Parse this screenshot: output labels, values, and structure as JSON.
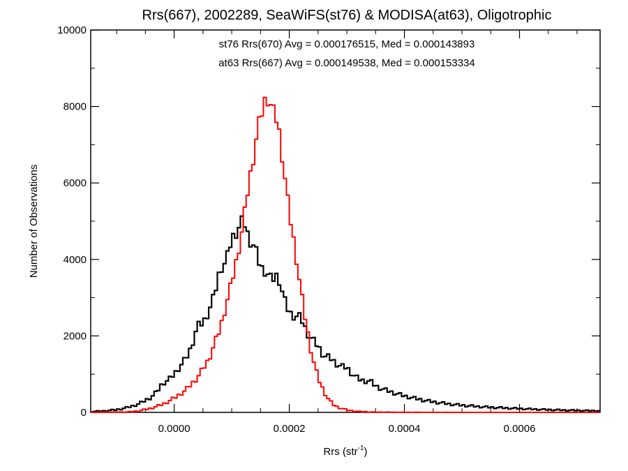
{
  "chart_data": {
    "type": "line",
    "title": "Rrs(667), 2002289, SeaWiFS(st76) & MODISA(at63), Oligotrophic",
    "xlabel": "Rrs (str",
    "xlabel_sup": "-1",
    "xlabel_close": ")",
    "ylabel": "Number of Observations",
    "xlim": [
      -0.000145,
      0.00074
    ],
    "ylim": [
      0,
      10000
    ],
    "x_ticks": [
      {
        "value": 0.0,
        "label": "0.0000"
      },
      {
        "value": 0.0002,
        "label": "0.0002"
      },
      {
        "value": 0.0004,
        "label": "0.0004"
      },
      {
        "value": 0.0006,
        "label": "0.0006"
      }
    ],
    "y_ticks": [
      {
        "value": 0,
        "label": "0"
      },
      {
        "value": 2000,
        "label": "2000"
      },
      {
        "value": 4000,
        "label": "4000"
      },
      {
        "value": 6000,
        "label": "6000"
      },
      {
        "value": 8000,
        "label": "8000"
      },
      {
        "value": 10000,
        "label": "10000"
      }
    ],
    "annotations": [
      {
        "text": "st76 Rrs(670) Avg = 0.000176515, Med = 0.000143893",
        "color": "#000000"
      },
      {
        "text": "at63 Rrs(667) Avg = 0.000149538, Med = 0.000153334",
        "color": "#ff0000"
      }
    ],
    "series": [
      {
        "color": "#000000",
        "points": [
          [
            -0.000145,
            20
          ],
          [
            -0.00012,
            40
          ],
          [
            -0.0001,
            70
          ],
          [
            -8e-05,
            130
          ],
          [
            -6e-05,
            230
          ],
          [
            -4e-05,
            400
          ],
          [
            -2e-05,
            650
          ],
          [
            0.0,
            1000
          ],
          [
            2e-05,
            1400
          ],
          [
            4e-05,
            1950
          ],
          [
            6e-05,
            2650
          ],
          [
            8e-05,
            3400
          ],
          [
            0.0001,
            4300
          ],
          [
            0.00011,
            4700
          ],
          [
            0.00012,
            4850
          ],
          [
            0.00013,
            4500
          ],
          [
            0.00014,
            4350
          ],
          [
            0.00015,
            4000
          ],
          [
            0.00016,
            3700
          ],
          [
            0.00017,
            3400
          ],
          [
            0.00018,
            3200
          ],
          [
            0.0002,
            2750
          ],
          [
            0.00022,
            2250
          ],
          [
            0.00024,
            1900
          ],
          [
            0.00026,
            1600
          ],
          [
            0.00028,
            1300
          ],
          [
            0.0003,
            1070
          ],
          [
            0.00032,
            880
          ],
          [
            0.00034,
            740
          ],
          [
            0.00036,
            620
          ],
          [
            0.00038,
            520
          ],
          [
            0.0004,
            430
          ],
          [
            0.00042,
            360
          ],
          [
            0.00044,
            300
          ],
          [
            0.00046,
            255
          ],
          [
            0.00048,
            215
          ],
          [
            0.0005,
            185
          ],
          [
            0.00054,
            140
          ],
          [
            0.00058,
            110
          ],
          [
            0.00062,
            85
          ],
          [
            0.00066,
            65
          ],
          [
            0.0007,
            50
          ],
          [
            0.00074,
            40
          ]
        ],
        "spikes": [
          [
            -2e-05,
            100
          ],
          [
            4e-05,
            260
          ],
          [
            8e-05,
            320
          ],
          [
            0.0001,
            220
          ],
          [
            0.00012,
            180
          ],
          [
            0.00015,
            -180
          ],
          [
            0.00018,
            350
          ],
          [
            0.0002,
            -120
          ],
          [
            0.00022,
            200
          ],
          [
            0.00026,
            -110
          ],
          [
            0.0003,
            90
          ],
          [
            0.00034,
            70
          ]
        ]
      },
      {
        "color": "#ff0000",
        "points": [
          [
            -0.000145,
            0
          ],
          [
            -8e-05,
            10
          ],
          [
            -6e-05,
            40
          ],
          [
            -4e-05,
            110
          ],
          [
            -2e-05,
            210
          ],
          [
            0.0,
            370
          ],
          [
            2e-05,
            580
          ],
          [
            4e-05,
            900
          ],
          [
            6e-05,
            1380
          ],
          [
            8e-05,
            2200
          ],
          [
            0.0001,
            3400
          ],
          [
            0.00011,
            4100
          ],
          [
            0.00012,
            4900
          ],
          [
            0.00013,
            5800
          ],
          [
            0.00014,
            6700
          ],
          [
            0.00015,
            7500
          ],
          [
            0.000155,
            7900
          ],
          [
            0.00016,
            8150
          ],
          [
            0.000165,
            8100
          ],
          [
            0.00017,
            7850
          ],
          [
            0.00018,
            7200
          ],
          [
            0.00019,
            6400
          ],
          [
            0.0002,
            5400
          ],
          [
            0.00021,
            4300
          ],
          [
            0.00022,
            3200
          ],
          [
            0.00023,
            2250
          ],
          [
            0.00024,
            1450
          ],
          [
            0.00025,
            900
          ],
          [
            0.00026,
            550
          ],
          [
            0.00027,
            300
          ],
          [
            0.00028,
            160
          ],
          [
            0.0003,
            60
          ],
          [
            0.00032,
            22
          ],
          [
            0.00035,
            6
          ],
          [
            0.0004,
            2
          ],
          [
            0.0005,
            0
          ],
          [
            0.00074,
            0
          ]
        ],
        "spikes": [
          [
            0.00013,
            200
          ],
          [
            0.000145,
            250
          ],
          [
            0.00016,
            100
          ],
          [
            0.00018,
            350
          ],
          [
            0.0002,
            -150
          ]
        ]
      }
    ]
  }
}
